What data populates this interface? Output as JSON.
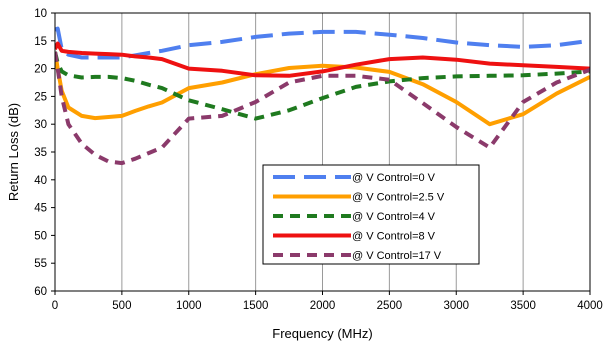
{
  "chart_data": {
    "type": "line",
    "title": "",
    "xlabel": "Frequency (MHz)",
    "ylabel": "Return Loss (dB)",
    "xlim": [
      0,
      4000
    ],
    "ylim": [
      10,
      60
    ],
    "y_axis_inverted": true,
    "xticks": [
      0,
      500,
      1000,
      1500,
      2000,
      2500,
      3000,
      3500,
      4000
    ],
    "yticks": [
      10,
      15,
      20,
      25,
      30,
      35,
      40,
      45,
      50,
      55,
      60
    ],
    "grid": "vertical",
    "legend_position": "center",
    "series": [
      {
        "name": "@ V Control=0 V",
        "color": "#4F7FEF",
        "dash": "long-dash",
        "x": [
          0,
          20,
          50,
          100,
          200,
          300,
          400,
          500,
          600,
          700,
          800,
          1000,
          1250,
          1500,
          1750,
          2000,
          2250,
          2500,
          2750,
          3000,
          3250,
          3500,
          3750,
          4000
        ],
        "y": [
          13,
          12.8,
          16.5,
          17.5,
          18,
          18,
          18,
          18,
          17.6,
          17.2,
          16.8,
          15.8,
          15.2,
          14.3,
          13.7,
          13.4,
          13.4,
          13.9,
          14.5,
          15.3,
          15.8,
          16.1,
          15.8,
          15
        ]
      },
      {
        "name": "@ V Control=2.5 V",
        "color": "#FF9F00",
        "dash": "solid",
        "x": [
          0,
          20,
          50,
          100,
          200,
          300,
          400,
          500,
          600,
          700,
          800,
          1000,
          1250,
          1500,
          1750,
          2000,
          2250,
          2500,
          2750,
          3000,
          3250,
          3500,
          3750,
          4000
        ],
        "y": [
          17,
          20,
          24,
          27,
          28.5,
          28.9,
          28.7,
          28.5,
          27.6,
          26.8,
          26.1,
          23.5,
          22.5,
          21,
          19.9,
          19.5,
          19.8,
          20.6,
          22.8,
          26,
          30,
          28.2,
          24.5,
          21.5
        ]
      },
      {
        "name": "@ V Control=4 V",
        "color": "#1F7A1F",
        "dash": "dash",
        "x": [
          0,
          20,
          50,
          100,
          200,
          300,
          400,
          500,
          600,
          700,
          800,
          1000,
          1250,
          1500,
          1750,
          2000,
          2250,
          2500,
          2750,
          3000,
          3250,
          3500,
          3750,
          4000
        ],
        "y": [
          17,
          19,
          20.5,
          21.2,
          21.6,
          21.5,
          21.5,
          21.7,
          22.2,
          22.9,
          23.5,
          25.7,
          27.3,
          29,
          27.5,
          25.3,
          23.3,
          22.3,
          21.7,
          21.4,
          21.3,
          21.2,
          20.9,
          20.5
        ]
      },
      {
        "name": "@ V Control=8 V",
        "color": "#EE1111",
        "dash": "solid",
        "x": [
          0,
          20,
          50,
          100,
          200,
          300,
          400,
          500,
          600,
          700,
          800,
          1000,
          1250,
          1500,
          1750,
          2000,
          2250,
          2500,
          2750,
          3000,
          3250,
          3500,
          3750,
          4000
        ],
        "y": [
          16.5,
          15.5,
          16.8,
          17,
          17.2,
          17.3,
          17.4,
          17.5,
          17.8,
          18,
          18.3,
          20,
          20.4,
          21.2,
          21.3,
          20.5,
          19.3,
          18.3,
          18,
          18.4,
          19.1,
          19.4,
          19.7,
          20
        ]
      },
      {
        "name": "@ V Control=17 V",
        "color": "#8B3A6B",
        "dash": "dash",
        "x": [
          0,
          20,
          50,
          100,
          200,
          300,
          400,
          500,
          600,
          700,
          800,
          1000,
          1250,
          1500,
          1750,
          2000,
          2250,
          2500,
          2750,
          3000,
          3250,
          3500,
          3750,
          4000
        ],
        "y": [
          17,
          20,
          25,
          30,
          33.5,
          35.5,
          36.7,
          37,
          36.2,
          35.2,
          34.2,
          29,
          28.5,
          26,
          22.5,
          21.3,
          21.3,
          22,
          26.2,
          30.5,
          34.2,
          26,
          22.5,
          20.2
        ]
      }
    ]
  }
}
